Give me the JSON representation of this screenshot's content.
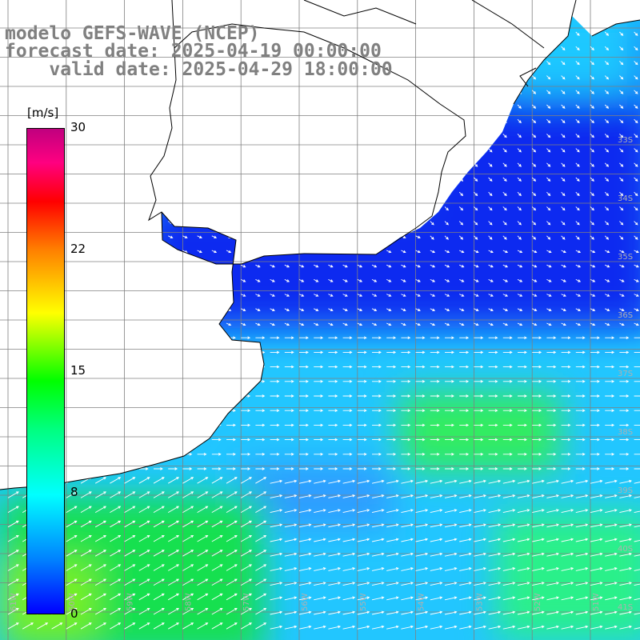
{
  "title": {
    "model": "modelo GEFS-WAVE (NCEP)",
    "forecast": "forecast date: 2025-04-19 00:00:00",
    "valid": "    valid date: 2025-04-29 18:00:00"
  },
  "colorbar": {
    "unit": "[m/s]",
    "ticks": [
      "30",
      "22",
      "15",
      "8",
      "0"
    ]
  },
  "latitude_labels": [
    "33S",
    "34S",
    "35S",
    "36S",
    "37S",
    "38S",
    "39S",
    "40S",
    "41S"
  ],
  "longitude_labels": [
    "61W",
    "60W",
    "59W",
    "58W",
    "57W",
    "56W",
    "55W",
    "54W",
    "53W",
    "52W",
    "51W"
  ],
  "colors": {
    "land": "#ffffff",
    "grid": "#808080",
    "coast": "#000000",
    "arrow": "#ffffff",
    "low_wind": "#0a2cf0",
    "mid_wind": "#1ec8ff",
    "high_wind": "#10e83c"
  },
  "icons": {
    "wind_vector": "arrow-right-icon"
  }
}
